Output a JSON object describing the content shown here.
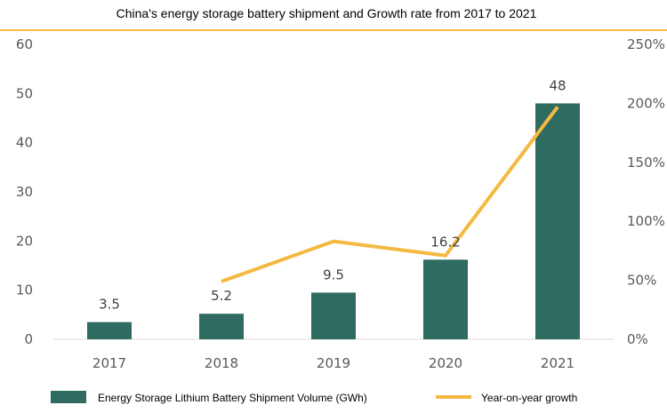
{
  "chart_data": {
    "type": "bar+line",
    "title": "China's energy storage battery shipment and Growth rate from 2017 to 2021",
    "categories": [
      "2017",
      "2018",
      "2019",
      "2020",
      "2021"
    ],
    "series": [
      {
        "name": "Energy Storage Lithium Battery Shipment Volume (GWh)",
        "type": "bar",
        "axis": "left",
        "values": [
          3.5,
          5.2,
          9.5,
          16.2,
          48
        ],
        "data_labels": [
          "3.5",
          "5.2",
          "9.5",
          "16.2",
          "48"
        ]
      },
      {
        "name": "Year-on-year growth",
        "type": "line",
        "axis": "right",
        "unit": "%",
        "values": [
          null,
          49,
          83,
          71,
          197
        ]
      }
    ],
    "y_left": {
      "min": 0,
      "max": 60,
      "ticks": [
        "0",
        "10",
        "20",
        "30",
        "40",
        "50",
        "60"
      ]
    },
    "y_right": {
      "min": 0,
      "max": 250,
      "ticks": [
        "0%",
        "50%",
        "100%",
        "150%",
        "200%",
        "250%"
      ]
    },
    "grid": false,
    "legend_position": "bottom"
  },
  "colors": {
    "bar": "#2e6b61",
    "line": "#f4b942",
    "title_rule": "#f4b942",
    "axis": "#d9d9d9"
  }
}
